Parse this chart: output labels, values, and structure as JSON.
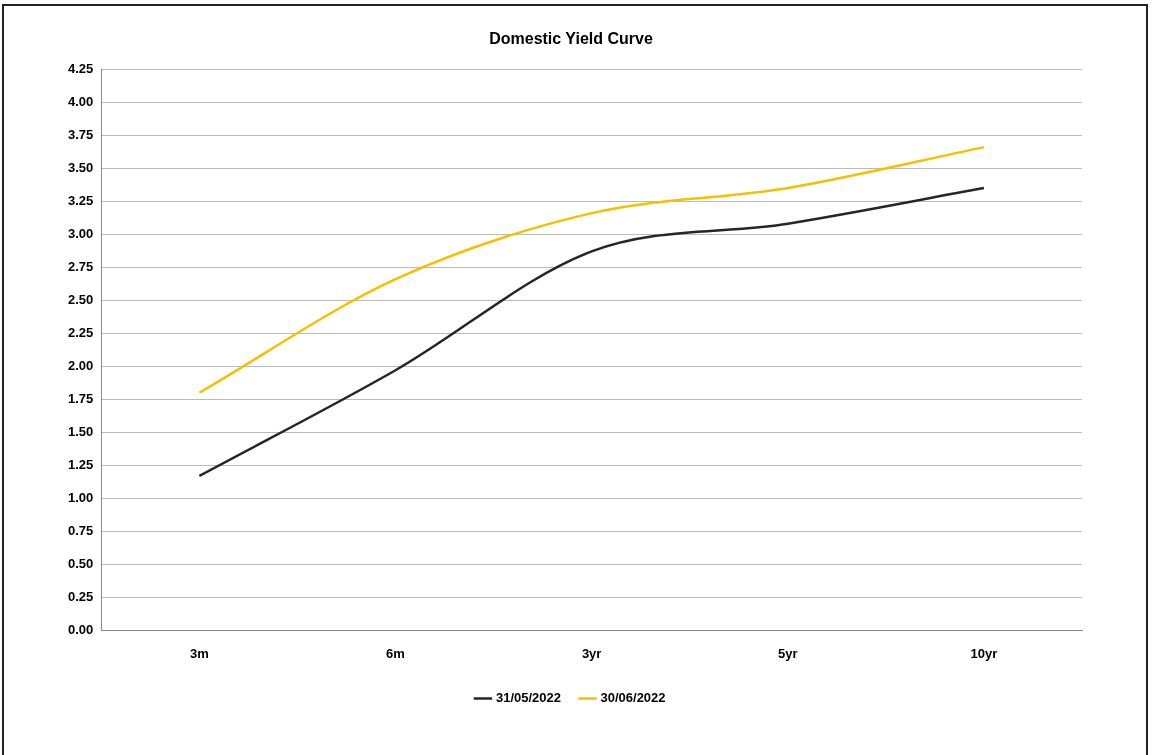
{
  "chart_data": {
    "type": "line",
    "title": "Domestic Yield Curve",
    "categories": [
      "3m",
      "6m",
      "3yr",
      "5yr",
      "10yr"
    ],
    "series": [
      {
        "name": "31/05/2022",
        "color": "#262626",
        "values": [
          1.17,
          1.97,
          2.87,
          3.08,
          3.35
        ]
      },
      {
        "name": "30/06/2022",
        "color": "#f5c000",
        "values": [
          1.8,
          2.66,
          3.16,
          3.35,
          3.66
        ]
      }
    ],
    "ylim": [
      0,
      4.25
    ],
    "yticks": [
      {
        "value": 0,
        "label": "0.00"
      },
      {
        "value": 0.25,
        "label": "0.25"
      },
      {
        "value": 0.5,
        "label": "0.50"
      },
      {
        "value": 0.75,
        "label": "0.75"
      },
      {
        "value": 1,
        "label": "1.00"
      },
      {
        "value": 1.25,
        "label": "1.25"
      },
      {
        "value": 1.5,
        "label": "1.50"
      },
      {
        "value": 1.75,
        "label": "1.75"
      },
      {
        "value": 2,
        "label": "2.00"
      },
      {
        "value": 2.25,
        "label": "2.25"
      },
      {
        "value": 2.5,
        "label": "2.50"
      },
      {
        "value": 2.75,
        "label": "2.75"
      },
      {
        "value": 3,
        "label": "3.00"
      },
      {
        "value": 3.25,
        "label": "3.25"
      },
      {
        "value": 3.5,
        "label": "3.50"
      },
      {
        "value": 3.75,
        "label": "3.75"
      },
      {
        "value": 4,
        "label": "4.00"
      },
      {
        "value": 4.25,
        "label": "4.25"
      }
    ],
    "grid": "y",
    "legend": "bottom",
    "marker": "none",
    "line_style": "solid"
  }
}
